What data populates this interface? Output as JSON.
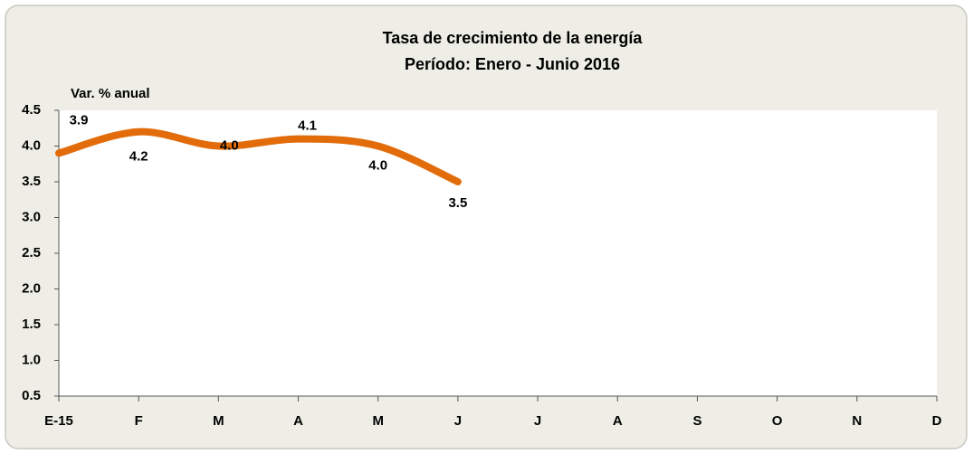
{
  "chart_data": {
    "type": "line",
    "title": "Tasa de crecimiento de la energía",
    "subtitle": "Período: Enero -  Junio 2016",
    "y_label": "Var. % anual",
    "categories": [
      "E-15",
      "F",
      "M",
      "A",
      "M",
      "J",
      "J",
      "A",
      "S",
      "O",
      "N",
      "D"
    ],
    "series": [
      {
        "name": "Tasa de crecimiento",
        "color": "#e36c0a",
        "values": [
          3.9,
          4.2,
          4.0,
          4.1,
          4.0,
          3.5,
          null,
          null,
          null,
          null,
          null,
          null
        ],
        "value_labels": [
          "3.9",
          "4.2",
          "4.0",
          "4.1",
          "4.0",
          "3.5",
          null,
          null,
          null,
          null,
          null,
          null
        ]
      }
    ],
    "ylim": [
      0.5,
      4.5
    ],
    "yticks": [
      0.5,
      {
        "value": 1.0,
        "label": "1.0"
      },
      1.5,
      {
        "value": 2.0,
        "label": "2.0"
      },
      2.5,
      {
        "value": 3.0,
        "label": "3.0"
      },
      3.5,
      {
        "value": 4.0,
        "label": "4.0"
      },
      4.5
    ],
    "grid": false
  }
}
